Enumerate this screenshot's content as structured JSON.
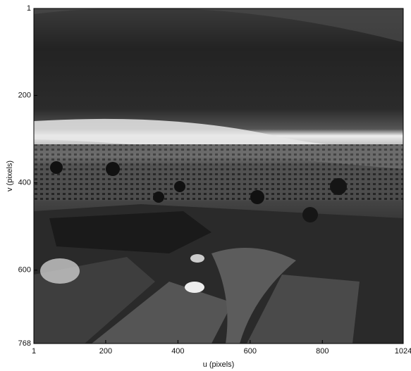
{
  "chart_data": {
    "type": "image",
    "xlabel": "u (pixels)",
    "ylabel": "v (pixels)",
    "xlim": [
      1,
      1024
    ],
    "ylim": [
      1,
      768
    ],
    "y_inverted": true,
    "xticks": [
      1,
      200,
      400,
      600,
      800,
      1024
    ],
    "yticks": [
      1,
      200,
      400,
      600,
      768
    ]
  }
}
